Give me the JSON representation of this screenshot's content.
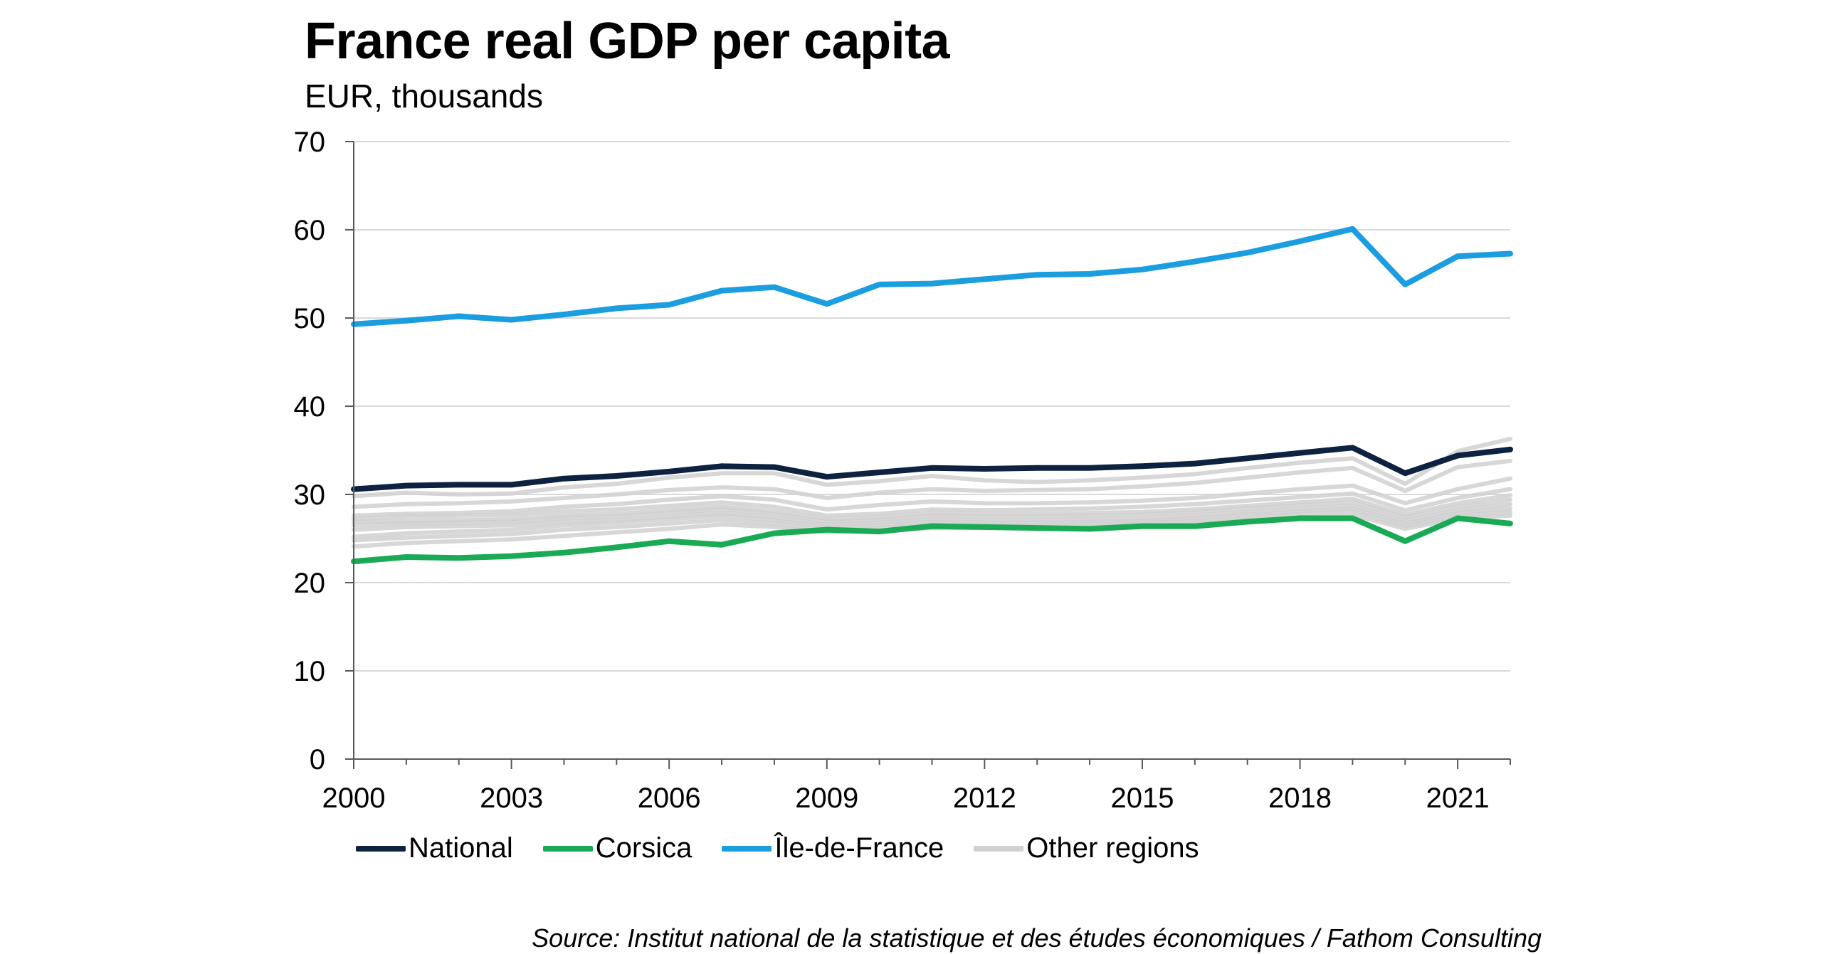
{
  "chart_data": {
    "type": "line",
    "title": "France real GDP per capita",
    "subtitle": "EUR, thousands",
    "xlabel": "",
    "ylabel": "",
    "xlim": [
      2000,
      2022
    ],
    "ylim": [
      0,
      70
    ],
    "yticks": [
      0,
      10,
      20,
      30,
      40,
      50,
      60,
      70
    ],
    "xticks": [
      2000,
      2003,
      2006,
      2009,
      2012,
      2015,
      2018,
      2021
    ],
    "grid": true,
    "legend_position": "bottom",
    "x": [
      2000,
      2001,
      2002,
      2003,
      2004,
      2005,
      2006,
      2007,
      2008,
      2009,
      2010,
      2011,
      2012,
      2013,
      2014,
      2015,
      2016,
      2017,
      2018,
      2019,
      2020,
      2021,
      2022
    ],
    "series": [
      {
        "name": "Other regions",
        "color": "#d0d0d0",
        "values": [
          29.8,
          30.2,
          30.0,
          30.1,
          30.8,
          31.2,
          31.9,
          32.4,
          32.4,
          31.1,
          31.5,
          32.1,
          31.6,
          31.4,
          31.6,
          31.9,
          32.3,
          33.0,
          33.6,
          34.1,
          31.2,
          34.9,
          36.3
        ]
      },
      {
        "name": "Other regions",
        "color": "#d0d0d0",
        "values": [
          28.6,
          28.9,
          29.0,
          29.2,
          29.6,
          30.0,
          30.5,
          30.8,
          30.6,
          29.6,
          30.2,
          30.6,
          30.4,
          30.5,
          30.6,
          30.9,
          31.3,
          31.9,
          32.5,
          33.0,
          30.4,
          33.1,
          33.8
        ]
      },
      {
        "name": "Other regions",
        "color": "#d0d0d0",
        "values": [
          27.6,
          27.8,
          27.9,
          28.1,
          28.6,
          28.9,
          29.4,
          29.8,
          29.4,
          28.3,
          28.8,
          29.2,
          29.0,
          29.0,
          29.1,
          29.3,
          29.6,
          30.1,
          30.6,
          31.0,
          29.0,
          30.6,
          31.8
        ]
      },
      {
        "name": "Other regions",
        "color": "#d0d0d0",
        "values": [
          27.2,
          27.5,
          27.6,
          27.7,
          28.1,
          28.3,
          28.7,
          29.1,
          28.6,
          27.6,
          27.8,
          28.3,
          28.2,
          28.3,
          28.4,
          28.6,
          28.9,
          29.3,
          29.7,
          30.1,
          28.2,
          29.6,
          30.6
        ]
      },
      {
        "name": "Other regions",
        "color": "#d0d0d0",
        "values": [
          26.9,
          27.0,
          27.1,
          27.2,
          27.6,
          27.8,
          28.2,
          28.6,
          28.1,
          27.2,
          27.4,
          27.9,
          27.8,
          27.8,
          27.9,
          28.0,
          28.3,
          28.7,
          29.1,
          29.5,
          27.7,
          29.0,
          29.9
        ]
      },
      {
        "name": "Other regions",
        "color": "#d0d0d0",
        "values": [
          26.5,
          26.7,
          26.8,
          26.9,
          27.3,
          27.5,
          27.9,
          28.3,
          27.8,
          26.9,
          27.1,
          27.6,
          27.5,
          27.5,
          27.6,
          27.7,
          28.0,
          28.4,
          28.8,
          29.1,
          27.4,
          28.6,
          29.4
        ]
      },
      {
        "name": "Other regions",
        "color": "#d0d0d0",
        "values": [
          26.0,
          26.3,
          26.4,
          26.5,
          26.9,
          27.1,
          27.5,
          27.9,
          27.4,
          26.6,
          26.8,
          27.2,
          27.1,
          27.1,
          27.2,
          27.3,
          27.6,
          28.0,
          28.4,
          28.7,
          27.0,
          28.2,
          28.9
        ]
      },
      {
        "name": "Other regions",
        "color": "#d0d0d0",
        "values": [
          25.2,
          25.6,
          25.8,
          26.0,
          26.5,
          26.8,
          27.2,
          27.6,
          27.1,
          26.3,
          26.5,
          26.9,
          26.8,
          26.8,
          26.9,
          27.0,
          27.3,
          27.7,
          28.1,
          28.4,
          26.7,
          27.9,
          28.4
        ]
      },
      {
        "name": "Other regions",
        "color": "#d0d0d0",
        "values": [
          24.8,
          25.1,
          25.3,
          25.5,
          26.0,
          26.3,
          26.7,
          27.1,
          26.7,
          26.0,
          26.2,
          26.6,
          26.5,
          26.5,
          26.6,
          26.8,
          27.0,
          27.4,
          27.8,
          28.1,
          26.4,
          27.6,
          28.0
        ]
      },
      {
        "name": "Other regions",
        "color": "#d0d0d0",
        "values": [
          24.1,
          24.5,
          24.7,
          24.9,
          25.3,
          25.7,
          26.1,
          26.6,
          26.3,
          25.7,
          25.9,
          26.2,
          26.2,
          26.2,
          26.3,
          26.5,
          26.7,
          27.1,
          27.4,
          27.7,
          26.1,
          27.3,
          27.6
        ]
      },
      {
        "name": "National",
        "color": "#0d2240",
        "values": [
          30.6,
          31.0,
          31.1,
          31.1,
          31.8,
          32.1,
          32.6,
          33.2,
          33.1,
          32.0,
          32.5,
          33.0,
          32.9,
          33.0,
          33.0,
          33.2,
          33.5,
          34.1,
          34.7,
          35.3,
          32.4,
          34.4,
          35.1
        ]
      },
      {
        "name": "Corsica",
        "color": "#1aaa55",
        "values": [
          22.4,
          22.9,
          22.8,
          23.0,
          23.4,
          24.0,
          24.7,
          24.3,
          25.6,
          26.0,
          25.8,
          26.4,
          26.3,
          26.2,
          26.1,
          26.4,
          26.4,
          26.9,
          27.3,
          27.3,
          24.7,
          27.3,
          26.7
        ]
      },
      {
        "name": "Île-de-France",
        "color": "#1a9ee0",
        "values": [
          49.3,
          49.7,
          50.2,
          49.8,
          50.4,
          51.1,
          51.5,
          53.1,
          53.5,
          51.6,
          53.8,
          53.9,
          54.4,
          54.9,
          55.0,
          55.5,
          56.4,
          57.4,
          58.7,
          60.1,
          53.8,
          57.0,
          57.3
        ]
      }
    ],
    "legend": [
      {
        "label": "National",
        "color": "#0d2240"
      },
      {
        "label": "Corsica",
        "color": "#1aaa55"
      },
      {
        "label": "Île-de-France",
        "color": "#1a9ee0"
      },
      {
        "label": "Other regions",
        "color": "#d0d0d0"
      }
    ],
    "source": "Source: Institut national de la statistique et des études économiques / Fathom Consulting"
  }
}
